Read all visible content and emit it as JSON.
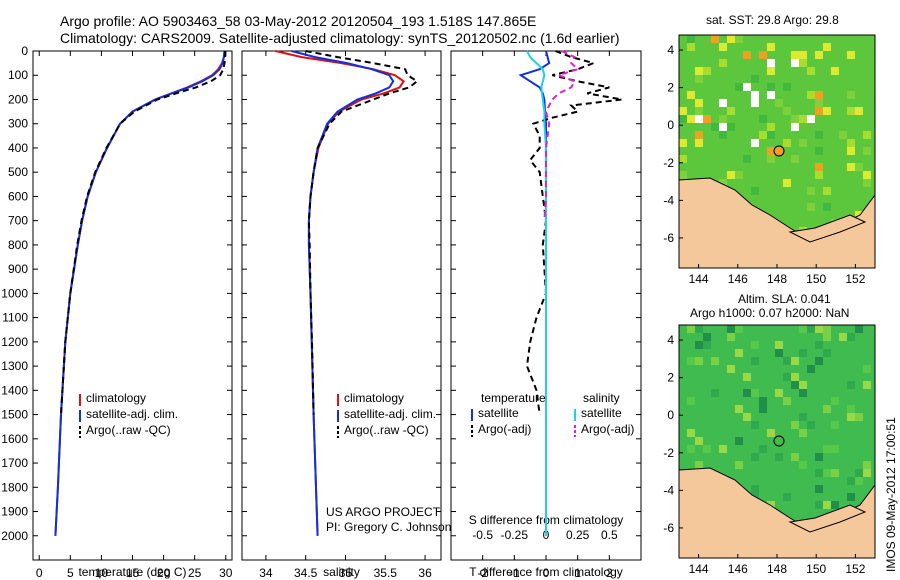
{
  "header": {
    "line1": "Argo profile: AO 5903463_58 03-May-2012 20120504_193 1.518S 147.865E",
    "line2": "Climatology: CARS2009. Satellite-adjusted climatology: synTS_20120502.nc (1.6d earlier)"
  },
  "credits": {
    "project": "US ARGO PROJECT",
    "pi": "PI: Gregory C. Johnson",
    "timestamp": "IMOS 09-May-2012 17:00:51"
  },
  "maps": {
    "sst_title": "sat. SST: 29.8 Argo: 29.8",
    "sla_title1": "Altim. SLA: 0.041",
    "sla_title2": "Argo h1000: 0.07 h2000: NaN",
    "x_ticks": [
      "144",
      "146",
      "148",
      "150",
      "152"
    ],
    "y_ticks": [
      "4",
      "2",
      "0",
      "-2",
      "-4",
      "-6"
    ],
    "colors": {
      "land": "#f5c89b",
      "sst_bg": "#5cc63c",
      "sla_bg": "#3fbb4f"
    }
  },
  "chart_data": [
    {
      "type": "line",
      "title": "",
      "xlabel": "temperature (deg C)",
      "ylabel": "",
      "xlim": [
        -1,
        31
      ],
      "ylim": [
        2100,
        0
      ],
      "xticks": [
        "0",
        "5",
        "10",
        "15",
        "20",
        "25",
        "30"
      ],
      "yticks": [
        "0",
        "100",
        "200",
        "300",
        "400",
        "500",
        "600",
        "700",
        "800",
        "900",
        "1000",
        "1100",
        "1200",
        "1300",
        "1400",
        "1500",
        "1600",
        "1700",
        "1800",
        "1900",
        "2000"
      ],
      "legend": [
        "climatology",
        "satellite-adj. clim.",
        "Argo(..raw -QC)"
      ],
      "legend_position": "lower-center",
      "series": [
        {
          "name": "climatology",
          "color": "#e01010",
          "depth": [
            0,
            25,
            50,
            75,
            100,
            125,
            150,
            175,
            200,
            250,
            300,
            400,
            500,
            600,
            700,
            800,
            1000,
            1200,
            1500,
            1800,
            2000
          ],
          "values": [
            29.8,
            29.7,
            29.4,
            28.8,
            27.8,
            26.0,
            23.8,
            21.2,
            18.6,
            15.0,
            13.0,
            10.9,
            9.1,
            7.8,
            6.9,
            6.2,
            5.0,
            4.2,
            3.5,
            3.0,
            2.6
          ]
        },
        {
          "name": "satellite-adj. clim.",
          "color": "#1030e0",
          "depth": [
            0,
            25,
            50,
            75,
            100,
            125,
            150,
            175,
            200,
            250,
            300,
            400,
            500,
            600,
            700,
            800,
            1000,
            1200,
            1500,
            1800,
            2000
          ],
          "values": [
            29.8,
            29.7,
            29.5,
            29.0,
            28.0,
            26.2,
            24.0,
            21.3,
            18.7,
            15.0,
            13.0,
            10.9,
            9.1,
            7.8,
            6.9,
            6.2,
            5.0,
            4.2,
            3.5,
            3.0,
            2.6
          ]
        },
        {
          "name": "Argo(..raw -QC)",
          "color": "#000000",
          "dash": true,
          "depth": [
            0,
            25,
            50,
            75,
            100,
            125,
            150,
            175,
            200,
            250,
            300,
            400,
            500,
            600,
            700,
            800,
            1000,
            1200,
            1500
          ],
          "values": [
            29.9,
            29.9,
            29.8,
            29.6,
            29.1,
            27.6,
            25.2,
            22.0,
            19.0,
            15.3,
            13.0,
            10.8,
            9.0,
            7.7,
            6.8,
            6.1,
            5.0,
            4.2,
            3.5
          ]
        }
      ]
    },
    {
      "type": "line",
      "title": "",
      "xlabel": "salinity",
      "ylabel": "",
      "xlim": [
        33.7,
        36.2
      ],
      "ylim": [
        2100,
        0
      ],
      "xticks": [
        "34",
        "34.5",
        "35",
        "35.5",
        "36"
      ],
      "legend": [
        "climatology",
        "satellite-adj. clim.",
        "Argo(..raw -QC)"
      ],
      "legend_position": "lower-right",
      "series": [
        {
          "name": "climatology",
          "color": "#e01010",
          "depth": [
            0,
            25,
            50,
            75,
            100,
            125,
            150,
            175,
            200,
            250,
            300,
            400,
            500,
            600,
            700,
            800,
            1000,
            1500,
            2000
          ],
          "values": [
            34.12,
            34.45,
            34.95,
            35.35,
            35.62,
            35.73,
            35.68,
            35.48,
            35.2,
            34.92,
            34.78,
            34.66,
            34.6,
            34.56,
            34.54,
            34.54,
            34.56,
            34.6,
            34.65
          ]
        },
        {
          "name": "satellite-adj. clim.",
          "color": "#1030e0",
          "depth": [
            0,
            25,
            50,
            75,
            100,
            125,
            150,
            175,
            200,
            250,
            300,
            400,
            500,
            600,
            700,
            800,
            1000,
            1500,
            2000
          ],
          "values": [
            34.32,
            34.62,
            35.02,
            35.33,
            35.55,
            35.6,
            35.55,
            35.38,
            35.15,
            34.9,
            34.77,
            34.65,
            34.6,
            34.56,
            34.54,
            34.54,
            34.56,
            34.6,
            34.65
          ]
        },
        {
          "name": "Argo(..raw -QC)",
          "color": "#000000",
          "dash": true,
          "depth": [
            0,
            25,
            50,
            75,
            100,
            125,
            150,
            175,
            200,
            250,
            300,
            400,
            500,
            600,
            700,
            800,
            1000,
            1200,
            1500
          ],
          "values": [
            34.5,
            34.9,
            35.35,
            35.75,
            35.78,
            35.9,
            35.8,
            35.55,
            35.35,
            34.95,
            34.8,
            34.65,
            34.6,
            34.56,
            34.54,
            34.55,
            34.56,
            34.58,
            34.6
          ]
        }
      ]
    },
    {
      "type": "line",
      "title": "",
      "xlabel": "T difference from climatology",
      "xlabel_top": "S difference from climatology",
      "ylabel": "",
      "xlim": [
        -3,
        3
      ],
      "ylim": [
        2100,
        0
      ],
      "xticks": [
        "-2",
        "-1",
        "0",
        "1",
        "2"
      ],
      "xticks_s": [
        "-0.5",
        "-0.25",
        "0",
        "0.25",
        "0.5"
      ],
      "legend_groups": [
        "temperature",
        "salinity"
      ],
      "legend": [
        "satellite",
        "Argo(-adj)",
        "satellite",
        "Argo(-adj)"
      ],
      "legend_position": "lower-center",
      "series": [
        {
          "name": "temperature satellite",
          "color": "#1030e0",
          "depth": [
            0,
            25,
            50,
            75,
            100,
            125,
            150,
            175,
            200,
            250,
            300,
            400,
            500,
            700,
            1000,
            1500,
            2000
          ],
          "values": [
            0.0,
            0.05,
            0.1,
            -0.2,
            -0.8,
            -0.5,
            -0.2,
            -0.1,
            -0.05,
            -0.03,
            0.0,
            0.0,
            0.0,
            0.0,
            0.0,
            0.0,
            0.0
          ]
        },
        {
          "name": "temperature Argo(-adj)",
          "color": "#000000",
          "dash": true,
          "depth": [
            0,
            25,
            50,
            75,
            100,
            125,
            150,
            175,
            200,
            225,
            250,
            275,
            300,
            350,
            400,
            450,
            500,
            600,
            700,
            800,
            1000,
            1100,
            1200,
            1300,
            1400,
            1500
          ],
          "values": [
            0.3,
            0.8,
            1.5,
            1.0,
            0.2,
            1.0,
            2.0,
            1.3,
            2.4,
            0.8,
            1.0,
            0.2,
            -0.4,
            -0.2,
            -0.2,
            -0.5,
            -0.2,
            -0.1,
            0.0,
            -0.1,
            0.0,
            -0.3,
            -0.5,
            -0.6,
            -0.3,
            -0.2
          ]
        },
        {
          "name": "salinity satellite",
          "color": "#20d0e8",
          "depth": [
            0,
            25,
            50,
            75,
            100,
            150,
            200,
            250,
            300,
            400,
            500,
            700,
            1000,
            1500,
            2000
          ],
          "values": [
            -0.6,
            -0.5,
            -0.3,
            -0.1,
            -0.05,
            -0.15,
            -0.1,
            -0.05,
            -0.05,
            0.0,
            0.0,
            0.0,
            0.0,
            0.0,
            0.0
          ]
        },
        {
          "name": "salinity Argo(-adj)",
          "color": "#e020d0",
          "dash": true,
          "depth": [
            0,
            25,
            50,
            75,
            100,
            125,
            150,
            175,
            200,
            250,
            300,
            400,
            500,
            600,
            700
          ],
          "values": [
            0.5,
            0.9,
            0.8,
            1.0,
            0.4,
            0.9,
            0.8,
            0.4,
            0.2,
            0.0,
            0.1,
            0.0,
            0.0,
            0.0,
            -0.05
          ]
        }
      ]
    }
  ]
}
